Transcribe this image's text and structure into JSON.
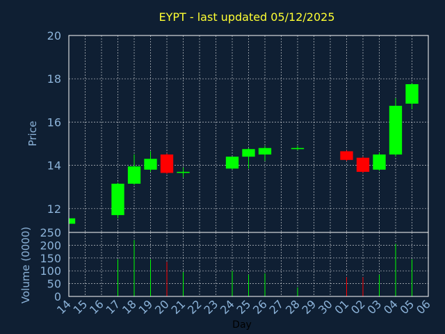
{
  "chart_data": {
    "type": "candlestick",
    "title": "EYPT - last updated 05/12/2025",
    "price_axis": {
      "label": "Price",
      "ylim": [
        10.9,
        20
      ],
      "ticks": [
        12,
        14,
        16,
        18,
        20
      ]
    },
    "volume_axis": {
      "label": "Volume (0000)",
      "ylim": [
        0,
        250
      ],
      "ticks": [
        0,
        50,
        100,
        150,
        200,
        250
      ]
    },
    "xlabel": "Day",
    "x_ticks": [
      "14",
      "15",
      "16",
      "17",
      "18",
      "19",
      "20",
      "21",
      "22",
      "23",
      "24",
      "25",
      "26",
      "27",
      "28",
      "29",
      "30",
      "01",
      "02",
      "03",
      "04",
      "05",
      "06"
    ],
    "grid": true,
    "up_color": "#00ff00",
    "down_color": "#ff0000",
    "candles": [
      {
        "day": "14",
        "open": 11.3,
        "high": 11.55,
        "low": 11.25,
        "close": 11.55,
        "volume": 0
      },
      {
        "day": "17",
        "open": 11.7,
        "high": 13.2,
        "low": 11.55,
        "close": 13.15,
        "volume": 145
      },
      {
        "day": "18",
        "open": 13.15,
        "high": 14.5,
        "low": 13.1,
        "close": 13.95,
        "volume": 220
      },
      {
        "day": "19",
        "open": 13.8,
        "high": 14.65,
        "low": 13.7,
        "close": 14.3,
        "volume": 145
      },
      {
        "day": "20",
        "open": 14.5,
        "high": 14.55,
        "low": 13.6,
        "close": 13.65,
        "volume": 135
      },
      {
        "day": "21",
        "open": 13.65,
        "high": 13.9,
        "low": 13.45,
        "close": 13.7,
        "volume": 95
      },
      {
        "day": "24",
        "open": 13.85,
        "high": 14.4,
        "low": 13.8,
        "close": 14.4,
        "volume": 100
      },
      {
        "day": "25",
        "open": 14.4,
        "high": 14.8,
        "low": 13.85,
        "close": 14.75,
        "volume": 85
      },
      {
        "day": "26",
        "open": 14.5,
        "high": 14.9,
        "low": 14.2,
        "close": 14.8,
        "volume": 90
      },
      {
        "day": "28",
        "open": 14.75,
        "high": 14.9,
        "low": 14.7,
        "close": 14.8,
        "volume": 35
      },
      {
        "day": "01",
        "open": 14.65,
        "high": 14.7,
        "low": 14.2,
        "close": 14.25,
        "volume": 75
      },
      {
        "day": "02",
        "open": 14.35,
        "high": 14.4,
        "low": 13.65,
        "close": 13.7,
        "volume": 75
      },
      {
        "day": "03",
        "open": 13.8,
        "high": 14.6,
        "low": 13.75,
        "close": 14.5,
        "volume": 85
      },
      {
        "day": "04",
        "open": 14.5,
        "high": 17.1,
        "low": 14.4,
        "close": 16.75,
        "volume": 205
      },
      {
        "day": "05",
        "open": 16.85,
        "high": 17.8,
        "low": 16.6,
        "close": 17.75,
        "volume": 145
      }
    ]
  }
}
